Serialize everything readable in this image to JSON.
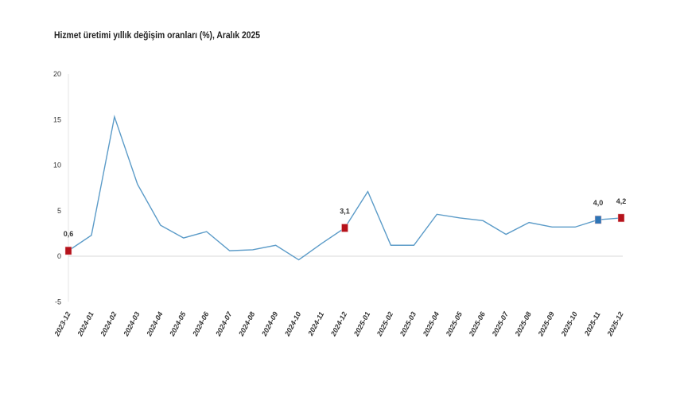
{
  "chart_data": {
    "type": "line",
    "title": "Hizmet üretimi yıllık değişim oranları (%), Aralık 2025",
    "xlabel": "",
    "ylabel": "",
    "ylim": [
      -5,
      20
    ],
    "yticks": [
      "-5",
      "0",
      "5",
      "10",
      "15",
      "20"
    ],
    "ytick_values": [
      -5,
      0,
      5,
      10,
      15,
      20
    ],
    "categories": [
      "2023-12",
      "2024-01",
      "2024-02",
      "2024-03",
      "2024-04",
      "2024-05",
      "2024-06",
      "2024-07",
      "2024-08",
      "2024-09",
      "2024-10",
      "2024-11",
      "2024-12",
      "2025-01",
      "2025-02",
      "2025-03",
      "2025-04",
      "2025-05",
      "2025-06",
      "2025-07",
      "2025-08",
      "2025-09",
      "2025-10",
      "2025-11",
      "2025-12"
    ],
    "series": [
      {
        "name": "Hizmet üretimi yıllık değişim",
        "color": "#5b9bc8",
        "values": [
          0.6,
          2.3,
          15.3,
          7.9,
          3.4,
          2.0,
          2.7,
          0.6,
          0.7,
          1.2,
          -0.4,
          1.4,
          3.1,
          7.1,
          1.2,
          1.2,
          4.6,
          4.2,
          3.9,
          2.4,
          3.7,
          3.2,
          3.2,
          4.0,
          4.2
        ]
      }
    ],
    "annotations": [
      {
        "index": 0,
        "label": "0,6",
        "color": "#b5121b"
      },
      {
        "index": 12,
        "label": "3,1",
        "color": "#b5121b"
      },
      {
        "index": 23,
        "label": "4,0",
        "color": "#2e75b6"
      },
      {
        "index": 24,
        "label": "4,2",
        "color": "#b5121b"
      }
    ],
    "grid": false
  }
}
